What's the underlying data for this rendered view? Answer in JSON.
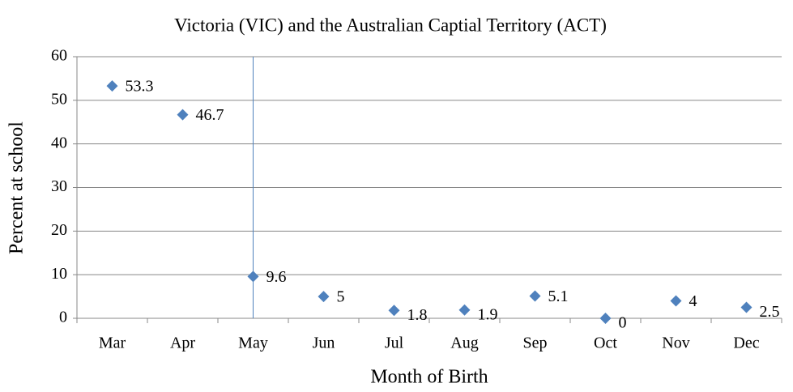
{
  "chart_data": {
    "type": "scatter",
    "title": "Victoria (VIC) and the Australian Captial Territory (ACT)",
    "x_label": "Month of Birth",
    "y_label": "Percent at school",
    "categories": [
      "Mar",
      "Apr",
      "May",
      "Jun",
      "Jul",
      "Aug",
      "Sep",
      "Oct",
      "Nov",
      "Dec"
    ],
    "values": [
      53.3,
      46.7,
      9.6,
      5,
      1.8,
      1.9,
      5.1,
      0,
      4,
      2.5
    ],
    "color": "#4f81bd",
    "reference_line": "May",
    "ylim": [
      0,
      60
    ],
    "yticks": [
      0,
      10,
      20,
      30,
      40,
      50,
      60
    ],
    "grid": true
  }
}
